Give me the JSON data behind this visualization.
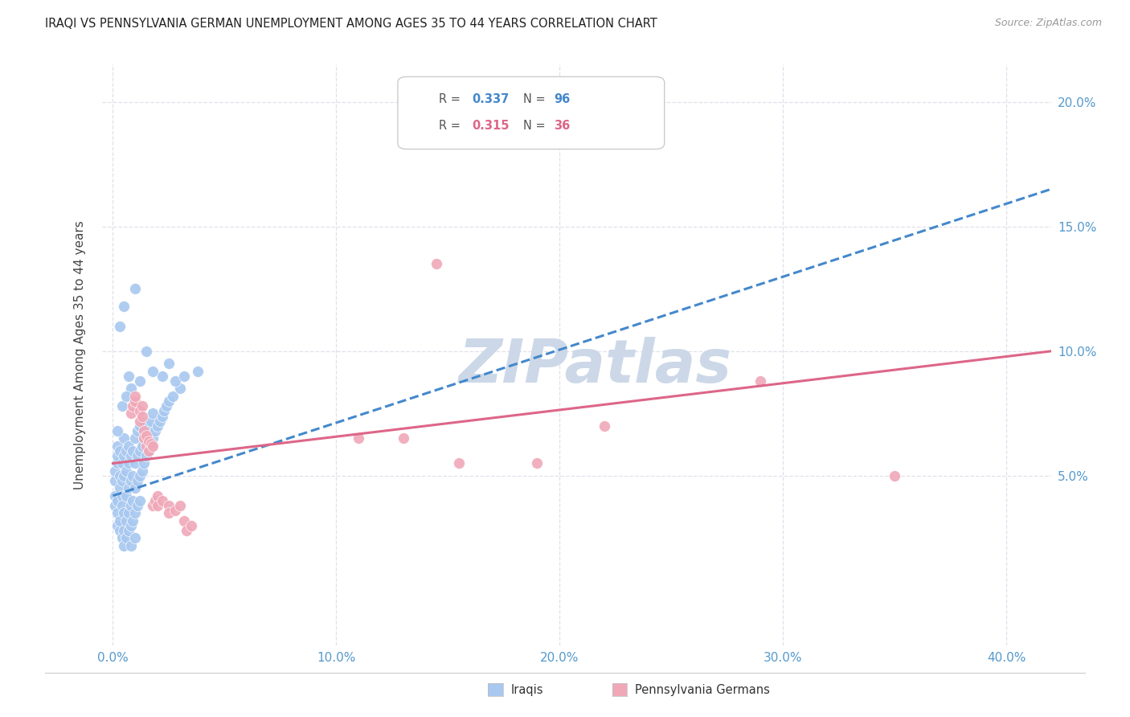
{
  "title": "IRAQI VS PENNSYLVANIA GERMAN UNEMPLOYMENT AMONG AGES 35 TO 44 YEARS CORRELATION CHART",
  "source": "Source: ZipAtlas.com",
  "xlabel_ticks": [
    "0.0%",
    "10.0%",
    "20.0%",
    "30.0%",
    "40.0%"
  ],
  "xlabel_tick_vals": [
    0.0,
    0.1,
    0.2,
    0.3,
    0.4
  ],
  "ylabel_right_ticks": [
    "20.0%",
    "15.0%",
    "10.0%",
    "5.0%"
  ],
  "ylabel_right_tick_vals": [
    0.2,
    0.15,
    0.1,
    0.05
  ],
  "xlim": [
    -0.005,
    0.42
  ],
  "ylim": [
    -0.018,
    0.215
  ],
  "iraqi_color": "#a8c8f0",
  "penn_color": "#f0a8b8",
  "iraqi_line_color": "#4488cc",
  "penn_line_color": "#dd6688",
  "watermark_color": "#ccd8e8",
  "legend_label_iraqi": "Iraqis",
  "legend_label_penn": "Pennsylvania Germans",
  "ylabel": "Unemployment Among Ages 35 to 44 years",
  "background_color": "#ffffff",
  "grid_color": "#e0e0eb",
  "iraqi_scatter": [
    [
      0.001,
      0.038
    ],
    [
      0.001,
      0.042
    ],
    [
      0.001,
      0.048
    ],
    [
      0.001,
      0.052
    ],
    [
      0.002,
      0.04
    ],
    [
      0.002,
      0.055
    ],
    [
      0.002,
      0.058
    ],
    [
      0.002,
      0.062
    ],
    [
      0.002,
      0.03
    ],
    [
      0.002,
      0.035
    ],
    [
      0.003,
      0.045
    ],
    [
      0.003,
      0.05
    ],
    [
      0.003,
      0.06
    ],
    [
      0.003,
      0.028
    ],
    [
      0.003,
      0.032
    ],
    [
      0.004,
      0.042
    ],
    [
      0.004,
      0.048
    ],
    [
      0.004,
      0.055
    ],
    [
      0.004,
      0.038
    ],
    [
      0.004,
      0.025
    ],
    [
      0.005,
      0.05
    ],
    [
      0.005,
      0.058
    ],
    [
      0.005,
      0.065
    ],
    [
      0.005,
      0.035
    ],
    [
      0.005,
      0.028
    ],
    [
      0.005,
      0.022
    ],
    [
      0.006,
      0.052
    ],
    [
      0.006,
      0.06
    ],
    [
      0.006,
      0.042
    ],
    [
      0.006,
      0.032
    ],
    [
      0.006,
      0.025
    ],
    [
      0.007,
      0.055
    ],
    [
      0.007,
      0.062
    ],
    [
      0.007,
      0.045
    ],
    [
      0.007,
      0.035
    ],
    [
      0.007,
      0.028
    ],
    [
      0.008,
      0.058
    ],
    [
      0.008,
      0.048
    ],
    [
      0.008,
      0.038
    ],
    [
      0.008,
      0.03
    ],
    [
      0.008,
      0.022
    ],
    [
      0.009,
      0.06
    ],
    [
      0.009,
      0.05
    ],
    [
      0.009,
      0.04
    ],
    [
      0.009,
      0.032
    ],
    [
      0.01,
      0.065
    ],
    [
      0.01,
      0.055
    ],
    [
      0.01,
      0.045
    ],
    [
      0.01,
      0.035
    ],
    [
      0.01,
      0.025
    ],
    [
      0.011,
      0.068
    ],
    [
      0.011,
      0.058
    ],
    [
      0.011,
      0.048
    ],
    [
      0.011,
      0.038
    ],
    [
      0.012,
      0.07
    ],
    [
      0.012,
      0.06
    ],
    [
      0.012,
      0.05
    ],
    [
      0.012,
      0.04
    ],
    [
      0.013,
      0.072
    ],
    [
      0.013,
      0.062
    ],
    [
      0.013,
      0.052
    ],
    [
      0.014,
      0.065
    ],
    [
      0.014,
      0.055
    ],
    [
      0.015,
      0.068
    ],
    [
      0.015,
      0.058
    ],
    [
      0.016,
      0.07
    ],
    [
      0.016,
      0.06
    ],
    [
      0.017,
      0.072
    ],
    [
      0.017,
      0.062
    ],
    [
      0.018,
      0.075
    ],
    [
      0.018,
      0.065
    ],
    [
      0.019,
      0.068
    ],
    [
      0.02,
      0.07
    ],
    [
      0.021,
      0.072
    ],
    [
      0.022,
      0.074
    ],
    [
      0.023,
      0.076
    ],
    [
      0.024,
      0.078
    ],
    [
      0.025,
      0.08
    ],
    [
      0.027,
      0.082
    ],
    [
      0.03,
      0.085
    ],
    [
      0.003,
      0.11
    ],
    [
      0.005,
      0.118
    ],
    [
      0.01,
      0.125
    ],
    [
      0.015,
      0.1
    ],
    [
      0.007,
      0.09
    ],
    [
      0.008,
      0.085
    ],
    [
      0.002,
      0.068
    ],
    [
      0.004,
      0.078
    ],
    [
      0.006,
      0.082
    ],
    [
      0.012,
      0.088
    ],
    [
      0.018,
      0.092
    ],
    [
      0.022,
      0.09
    ],
    [
      0.025,
      0.095
    ],
    [
      0.028,
      0.088
    ],
    [
      0.032,
      0.09
    ],
    [
      0.038,
      0.092
    ]
  ],
  "penn_scatter": [
    [
      0.008,
      0.075
    ],
    [
      0.009,
      0.078
    ],
    [
      0.01,
      0.08
    ],
    [
      0.01,
      0.082
    ],
    [
      0.012,
      0.076
    ],
    [
      0.012,
      0.072
    ],
    [
      0.013,
      0.078
    ],
    [
      0.013,
      0.074
    ],
    [
      0.014,
      0.068
    ],
    [
      0.014,
      0.065
    ],
    [
      0.015,
      0.066
    ],
    [
      0.015,
      0.062
    ],
    [
      0.016,
      0.064
    ],
    [
      0.016,
      0.06
    ],
    [
      0.017,
      0.063
    ],
    [
      0.018,
      0.062
    ],
    [
      0.018,
      0.038
    ],
    [
      0.019,
      0.04
    ],
    [
      0.02,
      0.042
    ],
    [
      0.02,
      0.038
    ],
    [
      0.022,
      0.04
    ],
    [
      0.025,
      0.038
    ],
    [
      0.025,
      0.035
    ],
    [
      0.028,
      0.036
    ],
    [
      0.03,
      0.038
    ],
    [
      0.032,
      0.032
    ],
    [
      0.033,
      0.028
    ],
    [
      0.035,
      0.03
    ],
    [
      0.11,
      0.065
    ],
    [
      0.13,
      0.065
    ],
    [
      0.145,
      0.135
    ],
    [
      0.155,
      0.055
    ],
    [
      0.19,
      0.055
    ],
    [
      0.22,
      0.07
    ],
    [
      0.29,
      0.088
    ],
    [
      0.35,
      0.05
    ]
  ],
  "iraqi_line_x": [
    0.0,
    0.42
  ],
  "iraqi_line_y": [
    0.042,
    0.165
  ],
  "penn_line_x": [
    0.0,
    0.42
  ],
  "penn_line_y": [
    0.055,
    0.1
  ]
}
